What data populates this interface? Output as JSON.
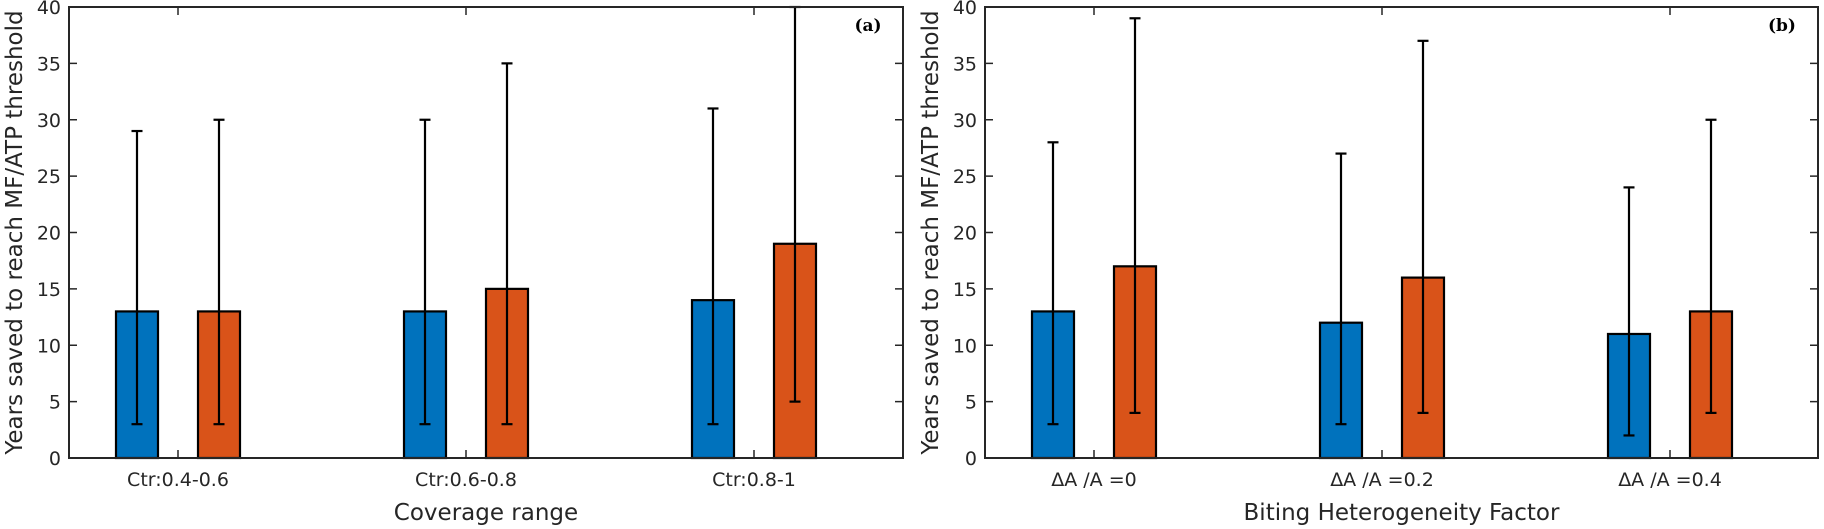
{
  "chart_data": [
    {
      "type": "bar",
      "panel_label": "(a)",
      "xlabel": "Coverage range",
      "ylabel": "Years saved to reach MF/ATP threshold",
      "ylim": [
        0,
        40
      ],
      "yticks": [
        0,
        5,
        10,
        15,
        20,
        25,
        30,
        35,
        40
      ],
      "categories": [
        "Ctr:0.4-0.6",
        "Ctr:0.6-0.8",
        "Ctr:0.8-1"
      ],
      "grid": false,
      "series": [
        {
          "color": "#0072BD",
          "values": [
            13,
            13,
            14
          ],
          "err_low": [
            3,
            3,
            3
          ],
          "err_high": [
            29,
            30,
            31
          ]
        },
        {
          "color": "#D95319",
          "values": [
            13,
            15,
            19
          ],
          "err_low": [
            3,
            3,
            5
          ],
          "err_high": [
            30,
            35,
            40
          ]
        }
      ]
    },
    {
      "type": "bar",
      "panel_label": "(b)",
      "xlabel": "Biting Heterogeneity Factor",
      "ylabel": "Years saved to reach MF/ATP threshold",
      "ylim": [
        0,
        40
      ],
      "yticks": [
        0,
        5,
        10,
        15,
        20,
        25,
        30,
        35,
        40
      ],
      "categories": [
        "ΔA /A =0",
        "ΔA /A =0.2",
        "ΔA /A =0.4"
      ],
      "grid": false,
      "series": [
        {
          "color": "#0072BD",
          "values": [
            13,
            12,
            11
          ],
          "err_low": [
            3,
            3,
            2
          ],
          "err_high": [
            28,
            27,
            24
          ]
        },
        {
          "color": "#D95319",
          "values": [
            17,
            16,
            13
          ],
          "err_low": [
            4,
            4,
            4
          ],
          "err_high": [
            39,
            37,
            30
          ]
        }
      ]
    }
  ]
}
